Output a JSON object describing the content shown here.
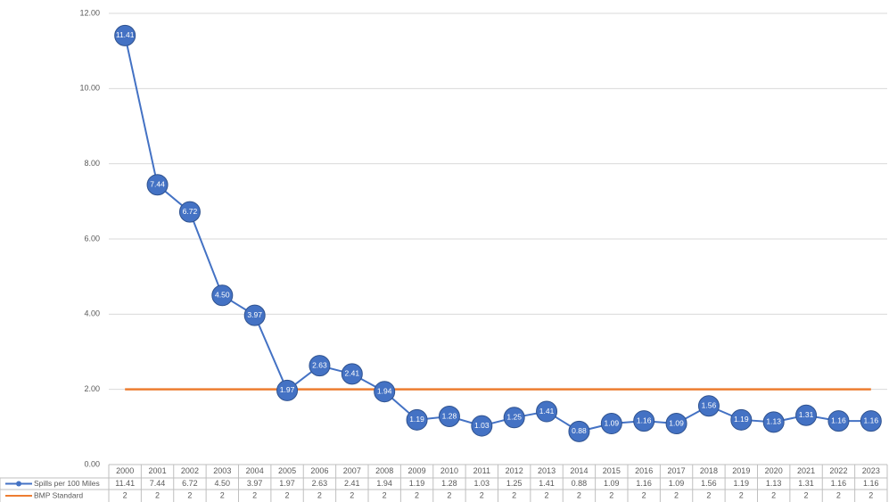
{
  "chart_data": {
    "type": "line",
    "categories": [
      "2000",
      "2001",
      "2002",
      "2003",
      "2004",
      "2005",
      "2006",
      "2007",
      "2008",
      "2009",
      "2010",
      "2011",
      "2012",
      "2013",
      "2014",
      "2015",
      "2016",
      "2017",
      "2018",
      "2019",
      "2020",
      "2021",
      "2022",
      "2023"
    ],
    "series": [
      {
        "name": "Spills per 100 Miles",
        "color": "#4472c4",
        "markers": true,
        "values": [
          11.41,
          7.44,
          6.72,
          4.5,
          3.97,
          1.97,
          2.63,
          2.41,
          1.94,
          1.19,
          1.28,
          1.03,
          1.25,
          1.41,
          0.88,
          1.09,
          1.16,
          1.09,
          1.56,
          1.19,
          1.13,
          1.31,
          1.16,
          1.16
        ],
        "value_labels": [
          "11.41",
          "7.44",
          "6.72",
          "4.50",
          "3.97",
          "1.97",
          "2.63",
          "2.41",
          "1.94",
          "1.19",
          "1.28",
          "1.03",
          "1.25",
          "1.41",
          "0.88",
          "1.09",
          "1.16",
          "1.09",
          "1.56",
          "1.19",
          "1.13",
          "1.31",
          "1.16",
          "1.16"
        ]
      },
      {
        "name": "BMP Standard",
        "color": "#ed7d31",
        "markers": false,
        "values": [
          2,
          2,
          2,
          2,
          2,
          2,
          2,
          2,
          2,
          2,
          2,
          2,
          2,
          2,
          2,
          2,
          2,
          2,
          2,
          2,
          2,
          2,
          2,
          2
        ]
      }
    ],
    "ylim": [
      0,
      12
    ],
    "yticks": [
      {
        "value": 0,
        "label": "0.00"
      },
      {
        "value": 2,
        "label": "2.00"
      },
      {
        "value": 4,
        "label": "4.00"
      },
      {
        "value": 6,
        "label": "6.00"
      },
      {
        "value": 8,
        "label": "8.00"
      },
      {
        "value": 10,
        "label": "10.00"
      },
      {
        "value": 12,
        "label": "12.00"
      }
    ],
    "grid": true,
    "data_table": true
  }
}
